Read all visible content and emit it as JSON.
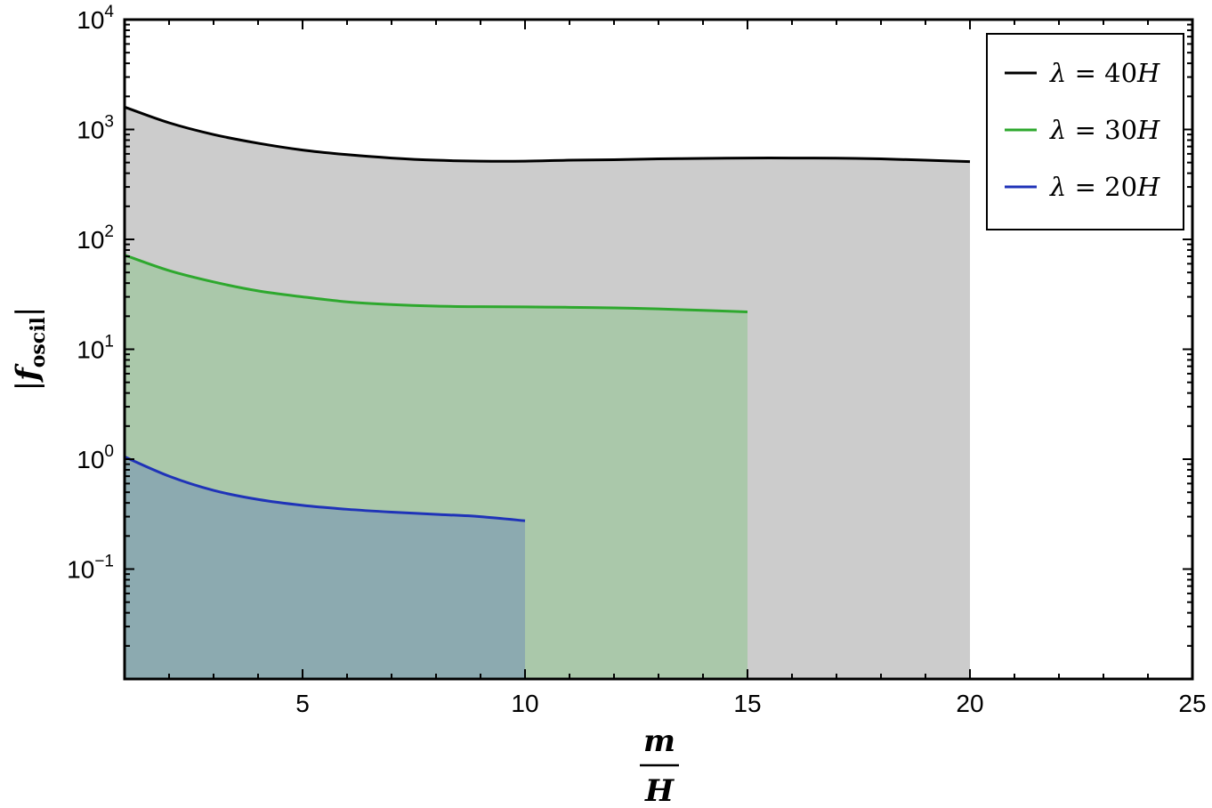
{
  "chart_data": {
    "type": "area",
    "x": {
      "label_num": "m",
      "label_den": "H",
      "lim": [
        1,
        25
      ],
      "ticks": [
        5,
        10,
        15,
        20,
        25
      ]
    },
    "y": {
      "label_pre": "|",
      "label_main": "f",
      "label_sub": "oscil",
      "label_post": "|",
      "scale": "log",
      "lim": [
        0.01,
        10000
      ],
      "ticks": [
        {
          "value": 0.1,
          "base": "10",
          "exp": "−1"
        },
        {
          "value": 1,
          "base": "10",
          "exp": "0"
        },
        {
          "value": 10,
          "base": "10",
          "exp": "1"
        },
        {
          "value": 100,
          "base": "10",
          "exp": "2"
        },
        {
          "value": 1000,
          "base": "10",
          "exp": "3"
        },
        {
          "value": 10000,
          "base": "10",
          "exp": "4"
        }
      ]
    },
    "series": [
      {
        "name": "λ = 40H",
        "legend_greek": "λ",
        "legend_eq": " = 40",
        "legend_var": "H",
        "color": "#000000",
        "fill": "#cccccc",
        "x": [
          1,
          2,
          3,
          4,
          5,
          6,
          7,
          8,
          9,
          10,
          11,
          12,
          13,
          14,
          15,
          16,
          17,
          18,
          19,
          20
        ],
        "y": [
          1600,
          1150,
          900,
          750,
          650,
          590,
          550,
          525,
          515,
          515,
          525,
          530,
          540,
          545,
          550,
          550,
          548,
          540,
          525,
          510
        ]
      },
      {
        "name": "λ = 30H",
        "legend_greek": "λ",
        "legend_eq": " = 30",
        "legend_var": "H",
        "color": "#2ea82e",
        "fill": "#aac8aa",
        "x": [
          1,
          2,
          3,
          4,
          5,
          6,
          7,
          8,
          9,
          10,
          11,
          12,
          13,
          14,
          15
        ],
        "y": [
          72,
          52,
          41,
          34,
          30,
          27,
          25.5,
          24.7,
          24.4,
          24.3,
          24.1,
          23.8,
          23.3,
          22.6,
          21.9
        ]
      },
      {
        "name": "λ = 20H",
        "legend_greek": "λ",
        "legend_eq": " = 20",
        "legend_var": "H",
        "color": "#1f33b8",
        "fill": "#8caab0",
        "x": [
          1,
          2,
          3,
          4,
          5,
          6,
          7,
          8,
          9,
          10
        ],
        "y": [
          1.05,
          0.7,
          0.52,
          0.43,
          0.38,
          0.35,
          0.33,
          0.315,
          0.3,
          0.275
        ]
      }
    ],
    "legend": "top-right",
    "grid": false
  }
}
